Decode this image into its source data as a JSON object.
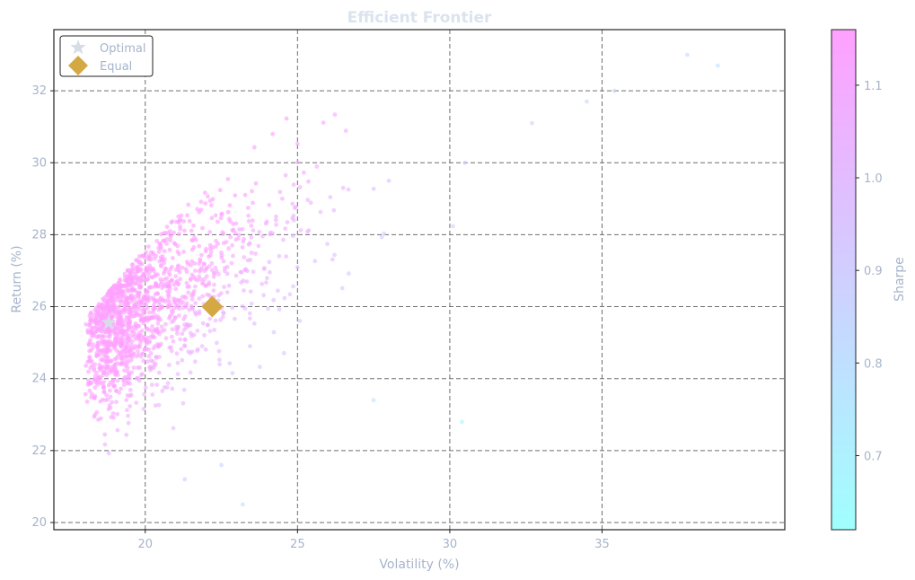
{
  "chart_data": {
    "type": "scatter",
    "title": "Efficient Frontier",
    "xlabel": "Volatility (%)",
    "ylabel": "Return (%)",
    "xlim": [
      17,
      41
    ],
    "ylim": [
      19.8,
      33.7
    ],
    "x_ticks": [
      20,
      25,
      30,
      35
    ],
    "y_ticks": [
      20,
      22,
      24,
      26,
      28,
      30,
      32
    ],
    "grid": true,
    "legend_position": "top-left",
    "colorbar": {
      "label": "Sharpe",
      "range": [
        0.62,
        1.16
      ],
      "ticks": [
        0.7,
        0.8,
        0.9,
        1.0,
        1.1
      ],
      "colormap": "cool",
      "color_low": "#a0ffff",
      "color_high": "#ffa0ff"
    },
    "markers": [
      {
        "name": "Optimal",
        "x": 18.8,
        "y": 25.55,
        "symbol": "star",
        "color": "#d7dde8"
      },
      {
        "name": "Equal",
        "x": 22.2,
        "y": 26.0,
        "symbol": "diamond",
        "color": "#d4a843"
      }
    ],
    "point_count": 1500,
    "samples": [
      {
        "x": 18.2,
        "y": 24.3
      },
      {
        "x": 19.5,
        "y": 25.6
      },
      {
        "x": 21.0,
        "y": 26.2
      },
      {
        "x": 22.5,
        "y": 27.5
      },
      {
        "x": 24.5,
        "y": 29.0
      },
      {
        "x": 26.5,
        "y": 29.3
      },
      {
        "x": 28.0,
        "y": 29.5
      },
      {
        "x": 30.5,
        "y": 30.0
      },
      {
        "x": 32.7,
        "y": 31.1
      },
      {
        "x": 34.5,
        "y": 31.7
      },
      {
        "x": 35.4,
        "y": 32.0
      },
      {
        "x": 37.8,
        "y": 33.0
      },
      {
        "x": 38.8,
        "y": 32.7
      },
      {
        "x": 23.2,
        "y": 20.5
      },
      {
        "x": 21.3,
        "y": 21.2
      },
      {
        "x": 30.4,
        "y": 22.8
      },
      {
        "x": 27.5,
        "y": 23.4
      },
      {
        "x": 22.5,
        "y": 21.6
      }
    ]
  }
}
